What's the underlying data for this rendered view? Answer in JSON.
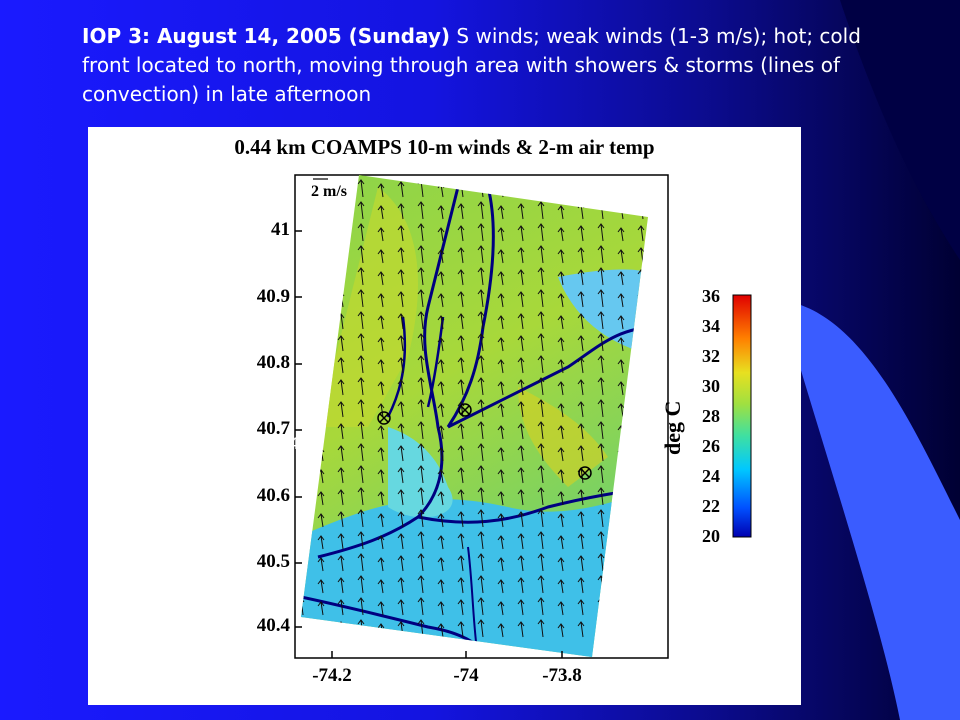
{
  "slide": {
    "title_bold": "IOP 3: August 14, 2005 (Sunday)",
    "title_rest": " S winds; weak winds (1-3 m/s); hot; cold front located to north, moving through area with showers & storms (lines of convection) in late afternoon"
  },
  "figure": {
    "title": "0.44 km COAMPS 10-m winds & 2-m air temp",
    "scale_label": "2 m/s",
    "lat_ticks": [
      "41",
      "40.9",
      "40.8",
      "40.7",
      "40.6",
      "40.5",
      "40.4"
    ],
    "lon_ticks": [
      "-74.2",
      "-74",
      "-73.8"
    ],
    "colorbar": {
      "unit": "deg C",
      "ticks": [
        "36",
        "34",
        "32",
        "30",
        "28",
        "26",
        "24",
        "22",
        "20"
      ]
    },
    "overlay": {
      "line1": "16 UTC",
      "line2": "August 14"
    }
  },
  "colors": {
    "slide_background": "#1a1aff",
    "deco_band": "#3a5cff",
    "title_text": "#ffffff"
  }
}
